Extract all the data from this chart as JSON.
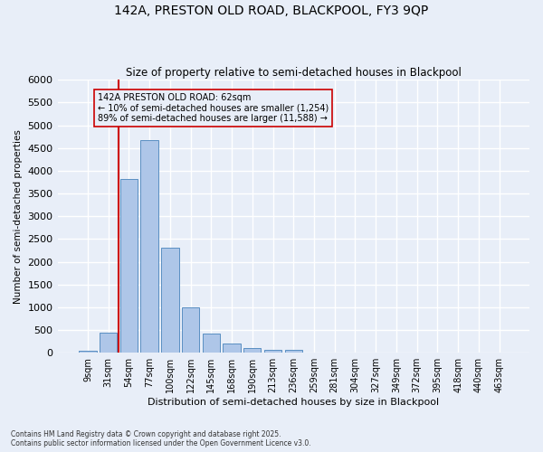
{
  "title": "142A, PRESTON OLD ROAD, BLACKPOOL, FY3 9QP",
  "subtitle": "Size of property relative to semi-detached houses in Blackpool",
  "xlabel": "Distribution of semi-detached houses by size in Blackpool",
  "ylabel": "Number of semi-detached properties",
  "footnote": "Contains HM Land Registry data © Crown copyright and database right 2025.\nContains public sector information licensed under the Open Government Licence v3.0.",
  "categories": [
    "9sqm",
    "31sqm",
    "54sqm",
    "77sqm",
    "100sqm",
    "122sqm",
    "145sqm",
    "168sqm",
    "190sqm",
    "213sqm",
    "236sqm",
    "259sqm",
    "281sqm",
    "304sqm",
    "327sqm",
    "349sqm",
    "372sqm",
    "395sqm",
    "418sqm",
    "440sqm",
    "463sqm"
  ],
  "values": [
    50,
    440,
    3820,
    4680,
    2300,
    1000,
    420,
    210,
    100,
    70,
    60,
    0,
    0,
    0,
    0,
    0,
    0,
    0,
    0,
    0,
    0
  ],
  "bar_color": "#aec6e8",
  "bar_edge_color": "#5a8fc2",
  "background_color": "#e8eef8",
  "grid_color": "#ffffff",
  "ylim": [
    0,
    6000
  ],
  "yticks": [
    0,
    500,
    1000,
    1500,
    2000,
    2500,
    3000,
    3500,
    4000,
    4500,
    5000,
    5500,
    6000
  ],
  "property_label": "142A PRESTON OLD ROAD: 62sqm",
  "pct_smaller": "10%",
  "n_smaller": "1,254",
  "pct_larger": "89%",
  "n_larger": "11,588",
  "vline_color": "#cc0000",
  "annotation_box_color": "#cc0000",
  "vline_x_index": 2.0
}
